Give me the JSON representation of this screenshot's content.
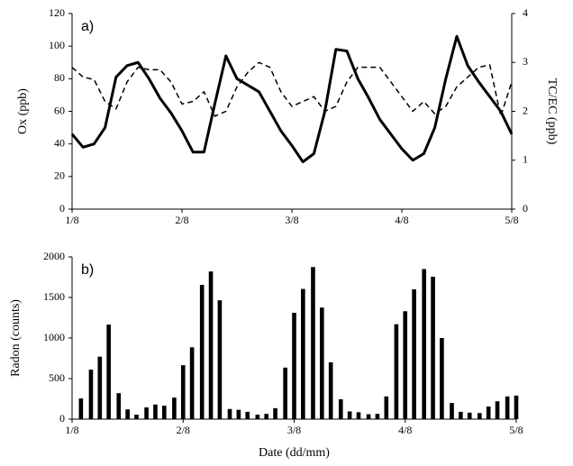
{
  "chart_data": [
    {
      "type": "line",
      "annotation": "a)",
      "ylabel": "Ox (ppb)",
      "y2label": "TC/EC (ppb)",
      "x": [
        1,
        1.1,
        1.2,
        1.3,
        1.4,
        1.5,
        1.6,
        1.7,
        1.8,
        1.9,
        2,
        2.1,
        2.2,
        2.3,
        2.4,
        2.5,
        2.6,
        2.7,
        2.8,
        2.9,
        3,
        3.1,
        3.2,
        3.3,
        3.4,
        3.5,
        3.6,
        3.7,
        3.8,
        3.9,
        4,
        4.1,
        4.2,
        4.3,
        4.4,
        4.5,
        4.6,
        4.7,
        4.8,
        4.9,
        5
      ],
      "xlim": [
        1,
        5
      ],
      "xticks": [
        {
          "value": 1,
          "label": "1/8"
        },
        {
          "value": 2,
          "label": "2/8"
        },
        {
          "value": 3,
          "label": "3/8"
        },
        {
          "value": 4,
          "label": "4/8"
        },
        {
          "value": 5,
          "label": "5/8"
        }
      ],
      "ylim": [
        0,
        120
      ],
      "yticks": [
        0,
        20,
        40,
        60,
        80,
        100,
        120
      ],
      "y2lim": [
        0,
        4
      ],
      "y2ticks": [
        0,
        1,
        2,
        3,
        4
      ],
      "series": [
        {
          "color": "#000000",
          "dashed": false,
          "width": 3,
          "values": [
            46,
            38,
            40,
            50,
            81,
            88,
            90,
            80,
            68,
            59,
            48,
            35,
            35,
            65,
            94,
            80,
            76,
            72,
            60,
            48,
            39,
            29,
            34,
            60,
            98,
            97,
            80,
            68,
            55,
            46,
            37,
            30,
            34,
            50,
            80,
            106,
            88,
            78,
            69,
            60,
            46
          ]
        },
        {
          "color": "#000000",
          "dashed": true,
          "width": 1.5,
          "axis": "y2",
          "values": [
            2.9,
            2.7,
            2.65,
            2.2,
            2.05,
            2.6,
            2.9,
            2.85,
            2.85,
            2.6,
            2.15,
            2.2,
            2.4,
            1.9,
            2.0,
            2.5,
            2.8,
            3.0,
            2.9,
            2.4,
            2.1,
            2.2,
            2.3,
            2.0,
            2.1,
            2.6,
            2.9,
            2.9,
            2.9,
            2.6,
            2.3,
            2.0,
            2.2,
            1.95,
            2.1,
            2.5,
            2.7,
            2.9,
            2.95,
            1.9,
            2.6
          ]
        }
      ]
    },
    {
      "type": "bar",
      "annotation": "b)",
      "ylabel": "Radon (counts)",
      "xlabel": "Date (dd/mm)",
      "color": "#000000",
      "x": [
        1.08,
        1.17,
        1.25,
        1.33,
        1.42,
        1.5,
        1.58,
        1.67,
        1.75,
        1.83,
        1.92,
        2,
        2.08,
        2.17,
        2.25,
        2.33,
        2.42,
        2.5,
        2.58,
        2.67,
        2.75,
        2.83,
        2.92,
        3,
        3.08,
        3.17,
        3.25,
        3.33,
        3.42,
        3.5,
        3.58,
        3.67,
        3.75,
        3.83,
        3.92,
        4,
        4.08,
        4.17,
        4.25,
        4.33,
        4.42,
        4.5,
        4.58,
        4.67,
        4.75,
        4.83,
        4.92,
        5
      ],
      "values": [
        255,
        610,
        770,
        1165,
        320,
        120,
        55,
        145,
        180,
        165,
        265,
        665,
        885,
        1655,
        1820,
        1465,
        125,
        115,
        90,
        55,
        65,
        135,
        635,
        1310,
        1605,
        1875,
        1375,
        700,
        245,
        95,
        85,
        60,
        65,
        280,
        1170,
        1330,
        1600,
        1850,
        1755,
        1000,
        200,
        90,
        80,
        75,
        155,
        220,
        280,
        290
      ],
      "xlim": [
        1,
        5
      ],
      "xticks": [
        {
          "value": 1,
          "label": "1/8"
        },
        {
          "value": 2,
          "label": "2/8"
        },
        {
          "value": 3,
          "label": "3/8"
        },
        {
          "value": 4,
          "label": "4/8"
        },
        {
          "value": 5,
          "label": "5/8"
        }
      ],
      "ylim": [
        0,
        2000
      ],
      "yticks": [
        0,
        500,
        1000,
        1500,
        2000
      ]
    }
  ]
}
